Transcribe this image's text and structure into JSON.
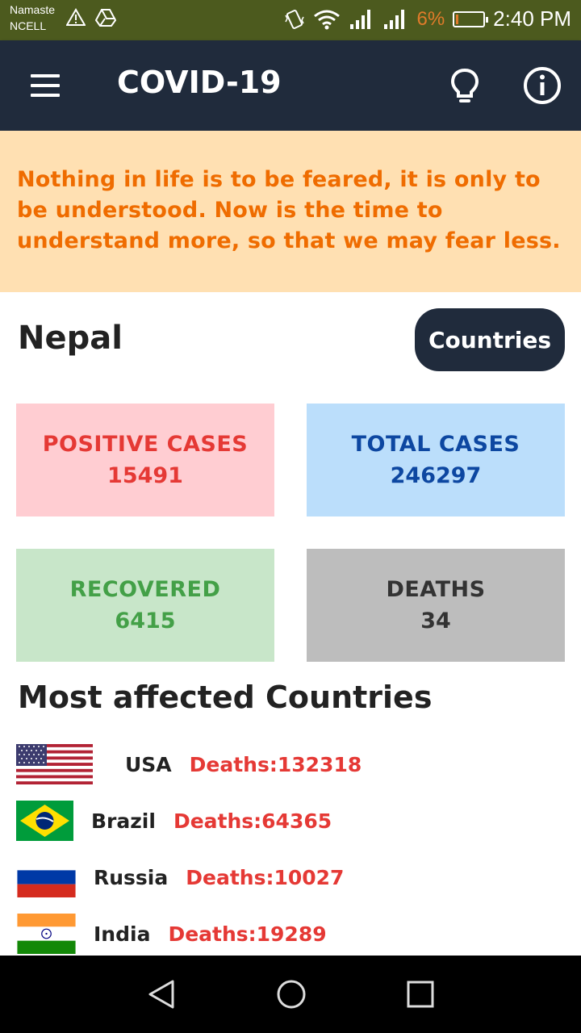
{
  "status_bar": {
    "carrier_line1": "Namaste",
    "carrier_line2": "NCELL",
    "battery": "6%",
    "time": "2:40 PM"
  },
  "app_bar": {
    "title": "COVID-19",
    "icons": [
      "menu-icon",
      "lightbulb-icon",
      "info-icon"
    ]
  },
  "quote": {
    "text": "Nothing in life is to be feared, it is only to be understood. Now is the time to understand more, so that we may fear less."
  },
  "country": {
    "name": "Nepal",
    "countries_button": "Countries"
  },
  "stats": {
    "positive": {
      "label": "POSITIVE CASES",
      "value": "15491"
    },
    "total": {
      "label": "TOTAL CASES",
      "value": "246297"
    },
    "recovered": {
      "label": "RECOVERED",
      "value": "6415"
    },
    "deaths": {
      "label": "DEATHS",
      "value": "34"
    }
  },
  "most_affected": {
    "title": "Most affected Countries",
    "items": [
      {
        "country": "USA",
        "deaths": "Deaths:132318",
        "flag": "usa-flag"
      },
      {
        "country": "Brazil",
        "deaths": "Deaths:64365",
        "flag": "brazil-flag"
      },
      {
        "country": "Russia",
        "deaths": "Deaths:10027",
        "flag": "russia-flag"
      },
      {
        "country": "India",
        "deaths": "Deaths:19289",
        "flag": "india-flag"
      }
    ]
  },
  "colors": {
    "app_bar": "#202b3c",
    "quote_bg": "#ffe0b2",
    "quote_text": "#ef6c00",
    "positive_bg": "#ffcdd2",
    "total_bg": "#bbdefb",
    "recovered_bg": "#c8e6c9",
    "deaths_bg": "#bdbdbd",
    "death_text": "#e53935"
  }
}
